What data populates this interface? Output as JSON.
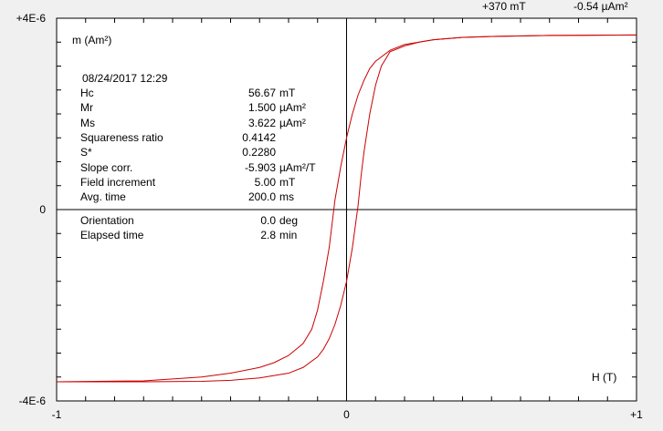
{
  "header": {
    "field_readout": "+370 mT",
    "moment_readout": "-0.54 µAm²"
  },
  "info": {
    "datetime": "08/24/2017   12:29",
    "parameters": [
      {
        "label": "Hc",
        "value": "56.67",
        "unit": "mT"
      },
      {
        "label": "Mr",
        "value": "1.500",
        "unit": "µAm²"
      },
      {
        "label": "Ms",
        "value": "3.622",
        "unit": "µAm²"
      },
      {
        "label": "Squareness ratio",
        "value": "0.4142",
        "unit": ""
      },
      {
        "label": "S*",
        "value": "0.2280",
        "unit": ""
      },
      {
        "label": "Slope corr.",
        "value": "-5.903",
        "unit": "µAm²/T"
      },
      {
        "label": "Field increment",
        "value": "5.00",
        "unit": "mT"
      },
      {
        "label": "Avg. time",
        "value": "200.0",
        "unit": "ms"
      }
    ],
    "parameters_lower": [
      {
        "label": "Orientation",
        "value": "0.0",
        "unit": "deg"
      },
      {
        "label": "Elapsed time",
        "value": "2.8",
        "unit": "min"
      }
    ]
  },
  "chart_data": {
    "type": "line",
    "xlabel": "H (T)",
    "ylabel": "m (Am²)",
    "xlim": [
      -1,
      1
    ],
    "ylim": [
      -4e-06,
      4e-06
    ],
    "x_tick_labels": [
      "-1",
      "0",
      "+1"
    ],
    "y_tick_labels": [
      "+4E-6",
      "0",
      "-4E-6"
    ],
    "grid": false,
    "line_color": "#cc0000",
    "series": [
      {
        "x": [
          -1.0,
          -0.7,
          -0.5,
          -0.4,
          -0.3,
          -0.25,
          -0.2,
          -0.15,
          -0.12,
          -0.1,
          -0.08,
          -0.06,
          -0.05,
          -0.04,
          -0.02,
          0.0,
          0.02,
          0.04,
          0.06,
          0.08,
          0.1,
          0.15,
          0.2,
          0.3,
          0.4,
          0.5,
          0.7,
          1.0
        ],
        "y": [
          -3.6e-06,
          -3.58e-06,
          -3.5e-06,
          -3.42e-06,
          -3.3e-06,
          -3.2e-06,
          -3.05e-06,
          -2.8e-06,
          -2.5e-06,
          -2.1e-06,
          -1.5e-06,
          -8e-07,
          -3e-07,
          2e-07,
          9e-07,
          1.5e-06,
          2e-06,
          2.4e-06,
          2.7e-06,
          2.95e-06,
          3.1e-06,
          3.33e-06,
          3.45e-06,
          3.55e-06,
          3.6e-06,
          3.62e-06,
          3.64e-06,
          3.65e-06
        ]
      },
      {
        "x": [
          1.0,
          0.7,
          0.5,
          0.4,
          0.3,
          0.25,
          0.2,
          0.15,
          0.12,
          0.1,
          0.08,
          0.06,
          0.05,
          0.04,
          0.02,
          0.0,
          -0.02,
          -0.04,
          -0.06,
          -0.08,
          -0.1,
          -0.15,
          -0.2,
          -0.3,
          -0.4,
          -0.5,
          -0.7,
          -1.0
        ],
        "y": [
          3.65e-06,
          3.64e-06,
          3.62e-06,
          3.6e-06,
          3.55e-06,
          3.5e-06,
          3.42e-06,
          3.3e-06,
          3e-06,
          2.6e-06,
          2e-06,
          1.2e-06,
          7e-07,
          1e-07,
          -8e-07,
          -1.5e-06,
          -2e-06,
          -2.4e-06,
          -2.7e-06,
          -2.92e-06,
          -3.08e-06,
          -3.3e-06,
          -3.42e-06,
          -3.52e-06,
          -3.57e-06,
          -3.59e-06,
          -3.6e-06,
          -3.6e-06
        ]
      }
    ]
  }
}
